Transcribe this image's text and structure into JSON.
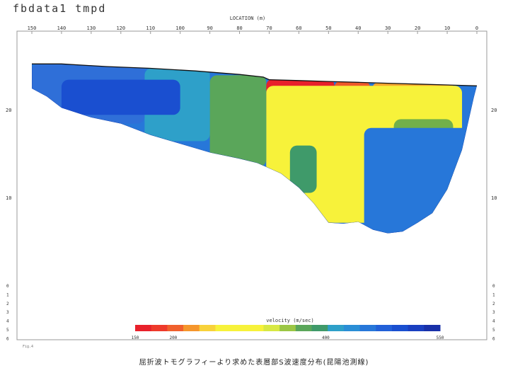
{
  "page": {
    "title": "fbdata1 tmpd",
    "caption": "屈折波トモグラフィーより求めた表層部S波速度分布(昆陽池測線)",
    "stamp": "Fig.4"
  },
  "chart_data": {
    "type": "heatmap",
    "title": "fbdata1 tmpd",
    "xlabel": "LOCATION (m)",
    "ylabel": "",
    "x_reversed": true,
    "xlim": [
      150,
      0
    ],
    "ylim": [
      -6,
      27
    ],
    "x_ticks": [
      150,
      140,
      130,
      120,
      110,
      100,
      90,
      80,
      70,
      60,
      50,
      40,
      30,
      20,
      10,
      0
    ],
    "y_ticks_main": [
      10,
      20
    ],
    "y_ticks_bottom": [
      0,
      -1,
      -2,
      -3,
      -4,
      -5,
      -6
    ],
    "y_ticks_bottom_labels": [
      "0",
      "1",
      "2",
      "3",
      "4",
      "5",
      "6"
    ],
    "grid": false,
    "surface": {
      "x": [
        150,
        140,
        125,
        110,
        95,
        80,
        72,
        70,
        60,
        50,
        40,
        30,
        20,
        10,
        0
      ],
      "y": [
        25.3,
        25.3,
        25.0,
        24.8,
        24.5,
        24.1,
        23.8,
        23.5,
        23.4,
        23.3,
        23.2,
        23.1,
        23.0,
        22.9,
        22.8
      ]
    },
    "bottom": {
      "x": [
        150,
        145,
        140,
        130,
        120,
        110,
        100,
        90,
        80,
        74,
        70,
        66,
        60,
        55,
        50,
        45,
        40,
        35,
        30,
        25,
        20,
        15,
        10,
        5,
        1
      ],
      "y": [
        22.5,
        21.6,
        20.3,
        19.2,
        18.5,
        17.2,
        16.2,
        15.2,
        14.5,
        14.0,
        13.4,
        12.8,
        11.2,
        9.4,
        7.2,
        7.1,
        7.3,
        6.4,
        6.0,
        6.2,
        7.2,
        8.3,
        11.0,
        15.5,
        21.5
      ]
    },
    "zones": [
      {
        "velocity": 170,
        "x0": 71,
        "x1": 48,
        "y0": 18.8,
        "y1": 23.6,
        "color": "#e8212b"
      },
      {
        "velocity": 190,
        "x0": 48,
        "x1": 36,
        "y0": 20.0,
        "y1": 23.4,
        "color": "#ee5a2a"
      },
      {
        "velocity": 200,
        "x0": 46,
        "x1": 42,
        "y0": 19.5,
        "y1": 22.5,
        "color": "#f5962c"
      },
      {
        "velocity": 200,
        "x0": 35,
        "x1": 8,
        "y0": 22.3,
        "y1": 23.2,
        "color": "#f5a62e"
      },
      {
        "velocity": 250,
        "x0": 71,
        "x1": 5,
        "y0": 7.2,
        "y1": 22.8,
        "color": "#f7f23a"
      },
      {
        "velocity": 320,
        "x0": 84,
        "x1": 74,
        "y0": 16.0,
        "y1": 24.0,
        "color": "#9bc644"
      },
      {
        "velocity": 360,
        "x0": 90,
        "x1": 71,
        "y0": 13.6,
        "y1": 24.0,
        "color": "#5aa65a"
      },
      {
        "velocity": 380,
        "x0": 63,
        "x1": 54,
        "y0": 10.6,
        "y1": 16.0,
        "color": "#3f9a6a"
      },
      {
        "velocity": 380,
        "x0": 28,
        "x1": 8,
        "y0": 9.0,
        "y1": 19.0,
        "color": "#72b04a"
      },
      {
        "velocity": 450,
        "x0": 112,
        "x1": 90,
        "y0": 16.5,
        "y1": 24.8,
        "color": "#2ea0c9"
      },
      {
        "velocity": 500,
        "x0": 150,
        "x1": 112,
        "y0": 18.5,
        "y1": 25.3,
        "color": "#2f6fd8"
      },
      {
        "velocity": 520,
        "x0": 140,
        "x1": 100,
        "y0": 19.5,
        "y1": 23.5,
        "color": "#1a4fd0"
      },
      {
        "velocity": 480,
        "x0": 38,
        "x1": 2,
        "y0": 6.0,
        "y1": 18.0,
        "color": "#2777d9"
      }
    ],
    "colorbar": {
      "label": "velocity (m/sec)",
      "tick_labels": [
        "150",
        "200",
        "400",
        "550"
      ],
      "tick_values": [
        150,
        200,
        400,
        550
      ],
      "range": [
        150,
        550
      ],
      "colors": [
        "#e8212b",
        "#ee3a2b",
        "#f0602d",
        "#f5962c",
        "#f8d23a",
        "#f7f23a",
        "#f7f23a",
        "#f7f23a",
        "#d8e843",
        "#9bc644",
        "#5aa65a",
        "#3f9a6a",
        "#2ea0c9",
        "#2a8ed6",
        "#2777d9",
        "#2260d8",
        "#1a4fd0",
        "#1a3fc0",
        "#1830a8"
      ]
    }
  }
}
